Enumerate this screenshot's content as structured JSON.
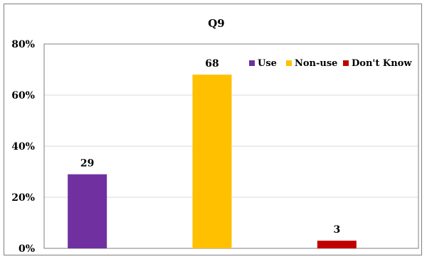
{
  "chart_data": {
    "type": "bar",
    "title": "Q9",
    "xlabel": "",
    "ylabel": "",
    "categories": [
      "Use",
      "Non-use",
      "Don't Know"
    ],
    "values": [
      29,
      68,
      3
    ],
    "data_labels": [
      "29",
      "68",
      "3"
    ],
    "ylim": [
      0,
      80
    ],
    "y_ticks": [
      0,
      20,
      40,
      60,
      80
    ],
    "y_tick_labels": [
      "0%",
      "20%",
      "40%",
      "60%",
      "80%"
    ],
    "colors": [
      "#7030a0",
      "#ffc000",
      "#c00000"
    ],
    "legend": {
      "placement": "top-right",
      "entries": [
        "Use",
        "Non-use",
        "Don't Know"
      ]
    },
    "grid": true
  }
}
